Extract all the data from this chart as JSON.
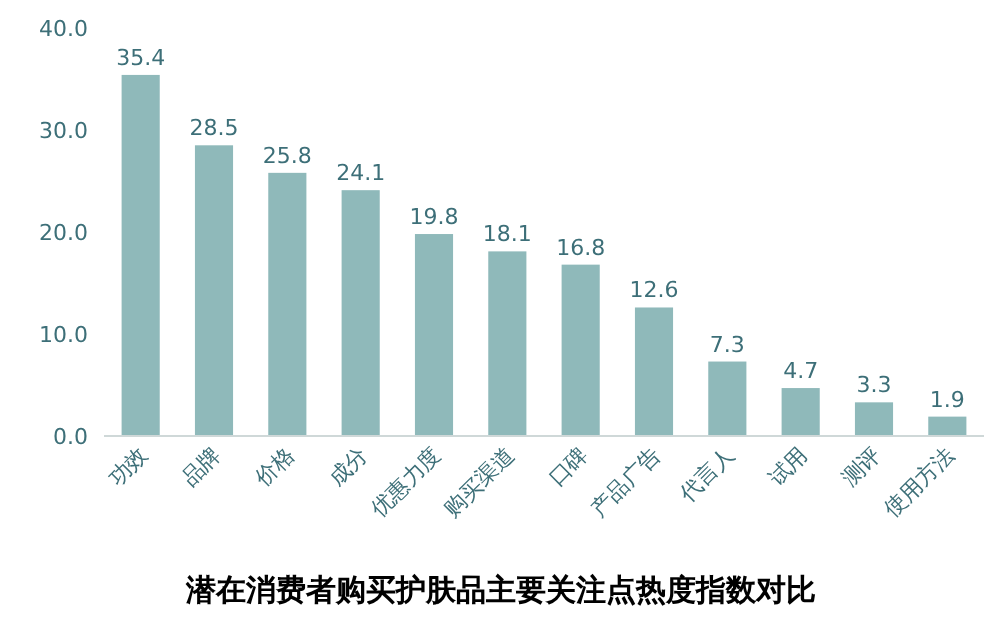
{
  "chart_data": {
    "type": "bar",
    "title": "潜在消费者购买护肤品主要关注点热度指数对比",
    "categories": [
      "功效",
      "品牌",
      "价格",
      "成分",
      "优惠力度",
      "购买渠道",
      "口碑",
      "产品广告",
      "代言人",
      "试用",
      "测评",
      "使用方法"
    ],
    "values": [
      35.4,
      28.5,
      25.8,
      24.1,
      19.8,
      18.1,
      16.8,
      12.6,
      7.3,
      4.7,
      3.3,
      1.9
    ],
    "color": "#8fb9ba",
    "ylim": [
      0,
      40
    ],
    "yticks": [
      {
        "value": 0,
        "label": "0.0"
      },
      {
        "value": 10,
        "label": "10.0"
      },
      {
        "value": 20,
        "label": "20.0"
      },
      {
        "value": 30,
        "label": "30.0"
      },
      {
        "value": 40,
        "label": "40.0"
      }
    ],
    "data_labels": true,
    "grid": false
  }
}
